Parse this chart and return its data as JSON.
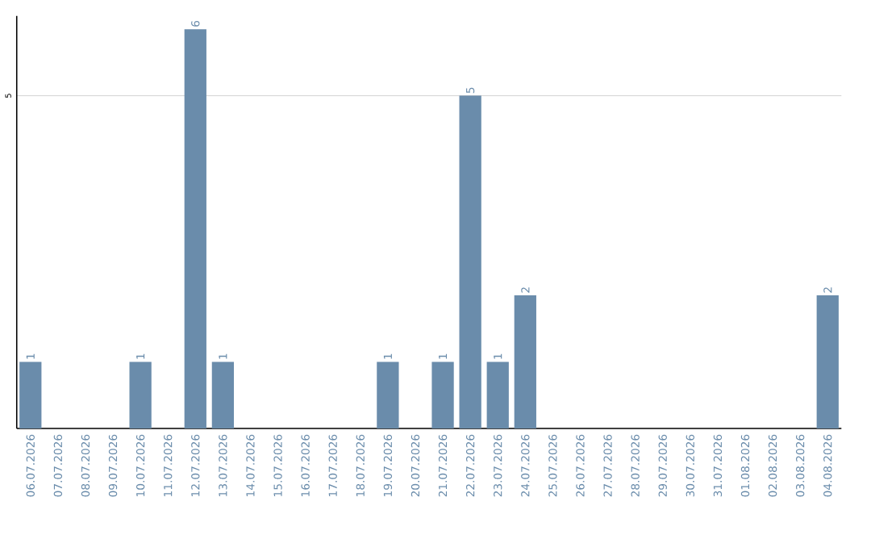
{
  "chart_data": {
    "type": "bar",
    "categories": [
      "06.07.2026",
      "07.07.2026",
      "08.07.2026",
      "09.07.2026",
      "10.07.2026",
      "11.07.2026",
      "12.07.2026",
      "13.07.2026",
      "14.07.2026",
      "15.07.2026",
      "16.07.2026",
      "17.07.2026",
      "18.07.2026",
      "19.07.2026",
      "20.07.2026",
      "21.07.2026",
      "22.07.2026",
      "23.07.2026",
      "24.07.2026",
      "25.07.2026",
      "26.07.2026",
      "27.07.2026",
      "28.07.2026",
      "29.07.2026",
      "30.07.2026",
      "31.07.2026",
      "01.08.2026",
      "02.08.2026",
      "03.08.2026",
      "04.08.2026"
    ],
    "values": [
      1,
      0,
      0,
      0,
      1,
      0,
      6,
      1,
      0,
      0,
      0,
      0,
      0,
      1,
      0,
      1,
      5,
      1,
      2,
      0,
      0,
      0,
      0,
      0,
      0,
      0,
      0,
      0,
      0,
      2
    ],
    "value_labels": [
      "1",
      null,
      null,
      null,
      "1",
      null,
      "6",
      "1",
      null,
      null,
      null,
      null,
      null,
      "1",
      null,
      "1",
      "5",
      "1",
      "2",
      null,
      null,
      null,
      null,
      null,
      null,
      null,
      null,
      null,
      null,
      "2"
    ],
    "color": "#6a8cab",
    "ylim": [
      0,
      6.2
    ],
    "yticks": [
      5
    ],
    "grid": "y"
  }
}
